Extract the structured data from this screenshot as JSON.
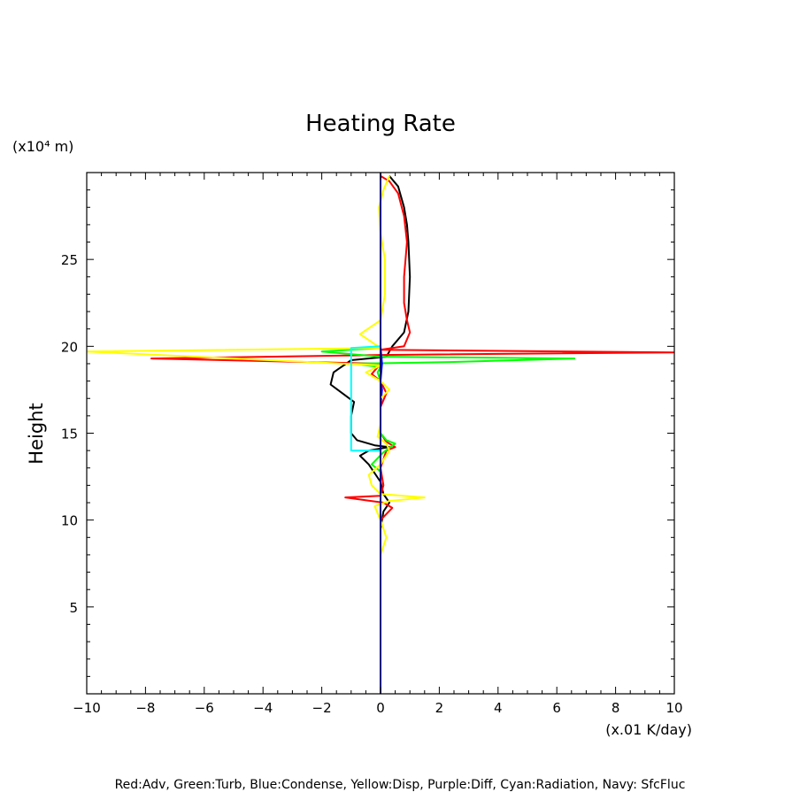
{
  "chart_data": {
    "type": "line",
    "title": "Heating Rate",
    "xlabel": "(x.01 K/day)",
    "ylabel": "Height",
    "y_unit": "(x10⁴ m)",
    "caption": "Red:Adv, Green:Turb, Blue:Condense, Yellow:Disp, Purple:Diff, Cyan:Radiation, Navy: SfcFluc",
    "xlim": [
      -10,
      10
    ],
    "ylim": [
      0,
      30
    ],
    "xticks": [
      "−10",
      "−8",
      "−6",
      "−4",
      "−2",
      "0",
      "2",
      "4",
      "6",
      "8",
      "10"
    ],
    "yticks": [
      "5",
      "10",
      "15",
      "20",
      "25"
    ],
    "grid": false,
    "series": [
      {
        "color": "#000000",
        "points": [
          [
            0,
            7.3
          ],
          [
            0,
            9.5
          ],
          [
            0.1,
            10.5
          ],
          [
            0.3,
            11.0
          ],
          [
            0.1,
            11.5
          ],
          [
            0,
            12.2
          ],
          [
            -0.4,
            13.2
          ],
          [
            -0.7,
            13.7
          ],
          [
            -0.4,
            14.0
          ],
          [
            0.3,
            14.2
          ],
          [
            -0.2,
            14.3
          ],
          [
            -0.8,
            14.6
          ],
          [
            -1.0,
            15.0
          ],
          [
            -1.0,
            16.0
          ],
          [
            -0.9,
            16.8
          ],
          [
            -1.3,
            17.3
          ],
          [
            -1.7,
            17.8
          ],
          [
            -1.6,
            18.5
          ],
          [
            -1.0,
            19.2
          ],
          [
            0.2,
            19.4
          ],
          [
            0.4,
            20.0
          ],
          [
            0.8,
            20.8
          ],
          [
            0.95,
            22
          ],
          [
            1.0,
            24
          ],
          [
            0.95,
            26
          ],
          [
            0.9,
            27
          ],
          [
            0.8,
            28
          ],
          [
            0.6,
            29.2
          ],
          [
            0.3,
            29.8
          ]
        ]
      },
      {
        "color": "#ff0000",
        "points": [
          [
            0,
            7.5
          ],
          [
            0,
            10.0
          ],
          [
            0.4,
            10.7
          ],
          [
            0.1,
            11.0
          ],
          [
            -1.2,
            11.3
          ],
          [
            0,
            11.4
          ],
          [
            0.1,
            12.0
          ],
          [
            0,
            13.0
          ],
          [
            0.2,
            14.0
          ],
          [
            0.5,
            14.2
          ],
          [
            0.2,
            14.5
          ],
          [
            0,
            15.0
          ],
          [
            0,
            16.5
          ],
          [
            0.2,
            17.3
          ],
          [
            0,
            18.0
          ],
          [
            -0.3,
            18.4
          ],
          [
            0,
            19.0
          ],
          [
            -7.8,
            19.3
          ],
          [
            0,
            19.5
          ],
          [
            10.0,
            19.65
          ],
          [
            0,
            19.8
          ],
          [
            0.8,
            20.0
          ],
          [
            1.0,
            20.8
          ],
          [
            0.9,
            21.5
          ],
          [
            0.8,
            22.5
          ],
          [
            0.8,
            24
          ],
          [
            0.9,
            26
          ],
          [
            0.8,
            27.5
          ],
          [
            0.6,
            28.8
          ],
          [
            0.3,
            29.5
          ],
          [
            0,
            29.8
          ]
        ]
      },
      {
        "color": "#00ff00",
        "points": [
          [
            0,
            12.8
          ],
          [
            -0.3,
            13.2
          ],
          [
            0.1,
            13.9
          ],
          [
            0.5,
            14.4
          ],
          [
            0.2,
            14.6
          ],
          [
            0,
            15.0
          ],
          [
            0,
            18.0
          ],
          [
            -0.1,
            18.5
          ],
          [
            0,
            18.8
          ],
          [
            -0.9,
            19.0
          ],
          [
            2.5,
            19.1
          ],
          [
            6.6,
            19.3
          ],
          [
            0,
            19.4
          ],
          [
            -2.0,
            19.7
          ],
          [
            0,
            19.9
          ]
        ]
      },
      {
        "color": "#0000ff",
        "points": [
          [
            0,
            16.5
          ],
          [
            0.05,
            17.5
          ],
          [
            0,
            18.0
          ],
          [
            0.05,
            19.0
          ],
          [
            0,
            20.0
          ]
        ]
      },
      {
        "color": "#ffff00",
        "points": [
          [
            0,
            8.0
          ],
          [
            0.2,
            9.0
          ],
          [
            0,
            10.0
          ],
          [
            -0.2,
            10.8
          ],
          [
            0.3,
            11.1
          ],
          [
            1.5,
            11.3
          ],
          [
            0,
            11.5
          ],
          [
            -0.3,
            12.0
          ],
          [
            -0.4,
            12.6
          ],
          [
            0,
            13.2
          ],
          [
            0.3,
            14.0
          ],
          [
            0.2,
            14.4
          ],
          [
            -0.1,
            14.8
          ],
          [
            0,
            15.5
          ],
          [
            0,
            17.0
          ],
          [
            0.3,
            17.5
          ],
          [
            0,
            18.0
          ],
          [
            -0.5,
            18.5
          ],
          [
            0,
            18.9
          ],
          [
            -10.0,
            19.7
          ],
          [
            0,
            19.9
          ],
          [
            -0.7,
            20.7
          ],
          [
            0,
            21.5
          ],
          [
            0.15,
            23
          ],
          [
            0.15,
            25
          ],
          [
            0,
            26.5
          ],
          [
            -0.05,
            28
          ],
          [
            0.1,
            29
          ],
          [
            0.3,
            29.8
          ]
        ]
      },
      {
        "color": "#00ffff",
        "points": [
          [
            0,
            14.0
          ],
          [
            -1.0,
            14.0
          ],
          [
            -1.0,
            19.9
          ],
          [
            0,
            20.0
          ]
        ]
      },
      {
        "color": "#000080",
        "points": [
          [
            0,
            0
          ],
          [
            0,
            30
          ]
        ]
      }
    ]
  }
}
